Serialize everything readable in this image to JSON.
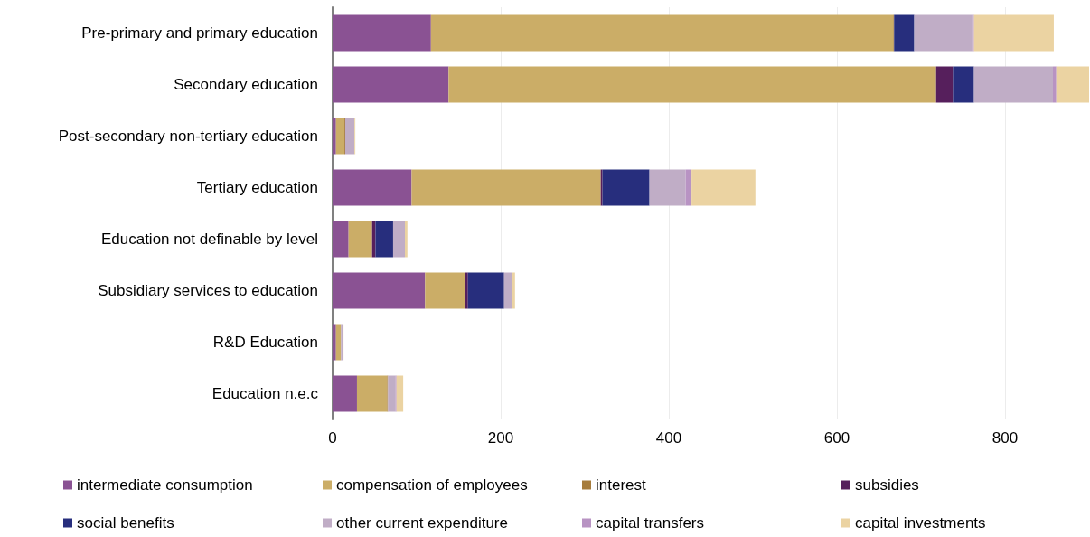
{
  "chart_data": {
    "type": "bar",
    "orientation": "horizontal",
    "stacked": true,
    "legend": "bottom",
    "grid": "x",
    "categories": [
      "Pre-primary and primary education",
      "Secondary education",
      "Post-secondary non-tertiary education",
      "Tertiary education",
      "Education not definable by level",
      "Subsidiary services to education",
      "R&D Education",
      "Education n.e.c"
    ],
    "xlim": [
      0,
      900
    ],
    "xticks": [
      0,
      200,
      400,
      600,
      800
    ],
    "series": [
      {
        "name": "intermediate consumption",
        "color": "#8a5293",
        "values": [
          117,
          138,
          4,
          94,
          19,
          110,
          4,
          29
        ]
      },
      {
        "name": "compensation of employees",
        "color": "#cbad67",
        "values": [
          550,
          580,
          10,
          225,
          28,
          48,
          6,
          36
        ]
      },
      {
        "name": "interest",
        "color": "#a67c3c",
        "values": [
          1,
          0,
          1,
          0,
          0,
          0,
          0,
          1
        ]
      },
      {
        "name": "subsidies",
        "color": "#561f5c",
        "values": [
          0,
          20,
          0,
          2,
          4,
          3,
          0,
          0
        ]
      },
      {
        "name": "social benefits",
        "color": "#272e7d",
        "values": [
          24,
          25,
          0,
          56,
          21,
          43,
          0,
          0
        ]
      },
      {
        "name": "other current expenditure",
        "color": "#c0adc6",
        "values": [
          69,
          94,
          11,
          43,
          14,
          10,
          2,
          9
        ]
      },
      {
        "name": "capital transfers",
        "color": "#b893c3",
        "values": [
          2,
          4,
          0,
          7,
          0,
          0,
          0,
          1
        ]
      },
      {
        "name": "capital investments",
        "color": "#ebd3a2",
        "values": [
          95,
          39,
          1,
          76,
          3,
          3,
          1,
          8
        ]
      }
    ]
  }
}
